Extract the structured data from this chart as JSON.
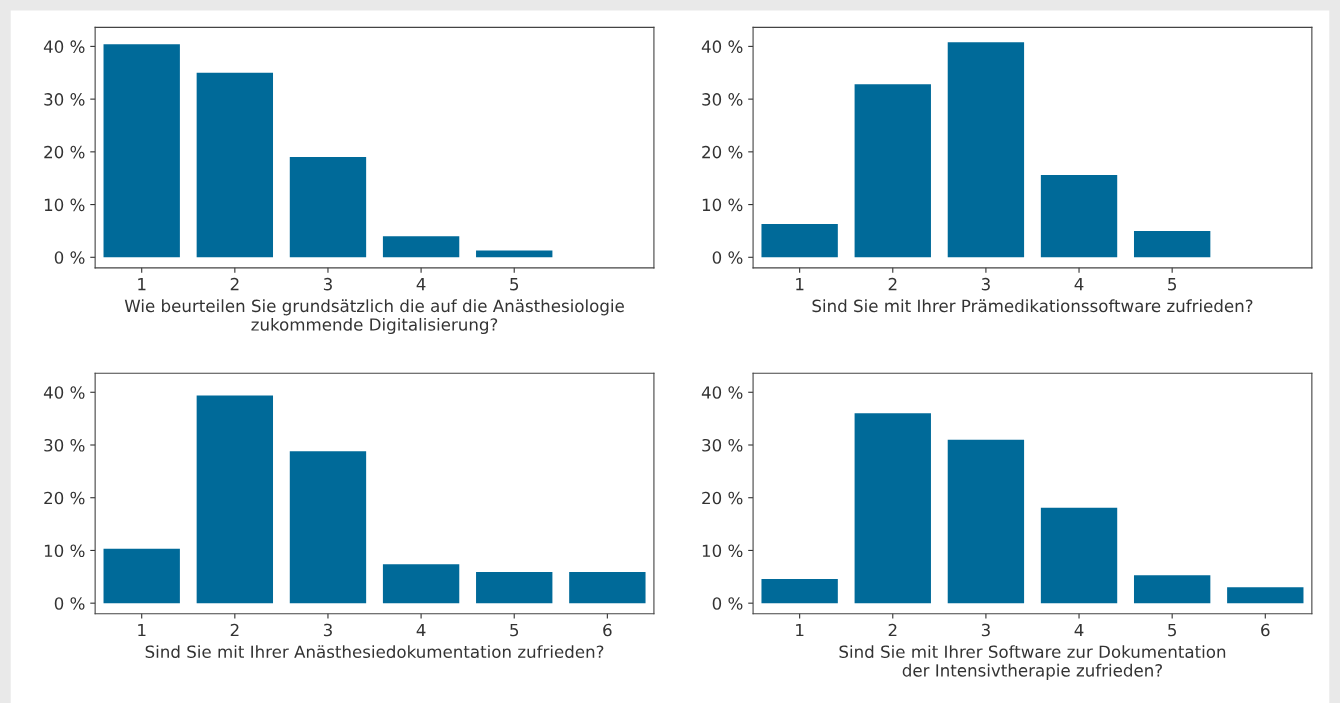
{
  "chart_data": [
    {
      "type": "bar",
      "xlabel": "Wie beurteilen Sie grundsätzlich die auf die Anästhesiologie\nzukommende Digitalisierung?",
      "x": [
        1,
        2,
        3,
        4,
        5
      ],
      "values": [
        40.4,
        35.0,
        19.0,
        4.0,
        1.3
      ],
      "color": "#006a99",
      "xlim": [
        0.5,
        6.5
      ],
      "xticks": [
        1,
        2,
        3,
        4,
        5
      ],
      "ylim": [
        -2,
        43.6
      ],
      "yticks": [
        {
          "value": 0,
          "label": "0 %"
        },
        {
          "value": 10,
          "label": "10 %"
        },
        {
          "value": 20,
          "label": "20 %"
        },
        {
          "value": 30,
          "label": "30 %"
        },
        {
          "value": 40,
          "label": "40 %"
        }
      ],
      "grid": false,
      "legend": false
    },
    {
      "type": "bar",
      "xlabel": "Sind Sie mit Ihrer Prämedikationssoftware zufrieden?",
      "x": [
        1,
        2,
        3,
        4,
        5
      ],
      "values": [
        6.3,
        32.8,
        40.8,
        15.6,
        5.0
      ],
      "color": "#006a99",
      "xlim": [
        0.5,
        6.5
      ],
      "xticks": [
        1,
        2,
        3,
        4,
        5
      ],
      "ylim": [
        -2,
        43.6
      ],
      "yticks": [
        {
          "value": 0,
          "label": "0 %"
        },
        {
          "value": 10,
          "label": "10 %"
        },
        {
          "value": 20,
          "label": "20 %"
        },
        {
          "value": 30,
          "label": "30 %"
        },
        {
          "value": 40,
          "label": "40 %"
        }
      ],
      "grid": false,
      "legend": false
    },
    {
      "type": "bar",
      "xlabel": "Sind Sie mit Ihrer Anästhesiedokumentation zufrieden?",
      "x": [
        1,
        2,
        3,
        4,
        5,
        6
      ],
      "values": [
        10.3,
        39.4,
        28.8,
        7.4,
        5.9,
        5.9
      ],
      "color": "#006a99",
      "xlim": [
        0.5,
        6.5
      ],
      "xticks": [
        1,
        2,
        3,
        4,
        5,
        6
      ],
      "ylim": [
        -2,
        43.6
      ],
      "yticks": [
        {
          "value": 0,
          "label": "0 %"
        },
        {
          "value": 10,
          "label": "10 %"
        },
        {
          "value": 20,
          "label": "20 %"
        },
        {
          "value": 30,
          "label": "30 %"
        },
        {
          "value": 40,
          "label": "40 %"
        }
      ],
      "grid": false,
      "legend": false
    },
    {
      "type": "bar",
      "xlabel": "Sind Sie mit Ihrer Software zur Dokumentation\nder Intensivtherapie zufrieden?",
      "x": [
        1,
        2,
        3,
        4,
        5,
        6
      ],
      "values": [
        4.6,
        36.0,
        31.0,
        18.1,
        5.3,
        3.0
      ],
      "color": "#006a99",
      "xlim": [
        0.5,
        6.5
      ],
      "xticks": [
        1,
        2,
        3,
        4,
        5,
        6
      ],
      "ylim": [
        -2,
        43.6
      ],
      "yticks": [
        {
          "value": 0,
          "label": "0 %"
        },
        {
          "value": 10,
          "label": "10 %"
        },
        {
          "value": 20,
          "label": "20 %"
        },
        {
          "value": 30,
          "label": "30 %"
        },
        {
          "value": 40,
          "label": "40 %"
        }
      ],
      "grid": false,
      "legend": false
    }
  ]
}
